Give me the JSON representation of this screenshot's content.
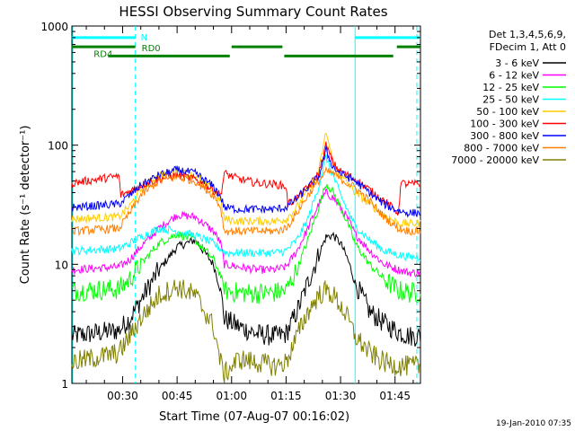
{
  "chart_data": {
    "type": "line",
    "title": "HESSI Observing Summary Count Rates",
    "xlabel": "Start Time (07-Aug-07 00:16:02)",
    "ylabel": "Count Rate (s⁻¹ detector⁻¹)",
    "yscale": "log",
    "ylim": [
      1,
      1000
    ],
    "xlim_minutes": [
      16.03,
      112.0
    ],
    "x_tick_labels": [
      "00:30",
      "00:45",
      "01:00",
      "01:15",
      "01:30",
      "01:45"
    ],
    "x_tick_minutes": [
      30,
      45,
      60,
      75,
      90,
      105
    ],
    "y_tick_labels": [
      "1",
      "10",
      "100",
      "1000"
    ],
    "y_tick_values": [
      1,
      10,
      100,
      1000
    ],
    "legend_header": [
      "Det 1,3,4,5,6,9,",
      "FDecim 1, Att 0"
    ],
    "series": [
      {
        "name": "3 - 6 keV",
        "color": "#000000",
        "x": [
          16,
          29,
          32,
          35,
          40,
          45,
          50,
          55,
          57,
          58,
          62,
          67,
          72,
          75,
          78,
          81,
          84,
          86,
          88,
          90,
          92,
          94,
          98,
          102,
          106,
          109,
          110,
          112
        ],
        "y": [
          2.5,
          2.8,
          3.5,
          5,
          9,
          14,
          16,
          10,
          6,
          3.5,
          3,
          2.6,
          2.5,
          2.6,
          4,
          7,
          12,
          17,
          17.5,
          15,
          11,
          7,
          4,
          3.2,
          2.7,
          2.5,
          2.5,
          2.5
        ]
      },
      {
        "name": "6 - 12 keV",
        "color": "#ff00ff",
        "x": [
          16,
          29,
          32,
          35,
          40,
          45,
          50,
          55,
          57,
          58,
          62,
          67,
          72,
          75,
          78,
          81,
          84,
          86,
          88,
          90,
          92,
          94,
          98,
          102,
          106,
          109,
          110,
          112
        ],
        "y": [
          9,
          9.5,
          11,
          14,
          20,
          26,
          25,
          19,
          15,
          10,
          9.5,
          9,
          9,
          9.5,
          13,
          20,
          32,
          40,
          36,
          30,
          24,
          18,
          13,
          10,
          9,
          8.5,
          8.5,
          8.5
        ]
      },
      {
        "name": "12 - 25 keV",
        "color": "#00ff00",
        "x": [
          16,
          29,
          32,
          35,
          40,
          45,
          50,
          55,
          57,
          58,
          62,
          67,
          72,
          75,
          78,
          81,
          84,
          86,
          88,
          90,
          92,
          94,
          98,
          102,
          106,
          109,
          110,
          112
        ],
        "y": [
          6,
          6.2,
          7.5,
          10,
          15,
          18,
          16,
          11,
          8,
          6,
          5.8,
          5.7,
          5.8,
          6,
          9,
          16,
          30,
          48,
          40,
          30,
          22,
          15,
          10,
          7.5,
          6,
          5.8,
          5.8,
          5.8
        ]
      },
      {
        "name": "25 - 50 keV",
        "color": "#00ffff",
        "x": [
          16,
          29,
          32,
          35,
          40,
          45,
          50,
          55,
          57,
          58,
          62,
          67,
          72,
          75,
          78,
          81,
          84,
          86,
          88,
          90,
          92,
          94,
          98,
          102,
          106,
          109,
          110,
          112
        ],
        "y": [
          13,
          13.5,
          15,
          17,
          20,
          19,
          17.5,
          15,
          13.5,
          12.5,
          12.5,
          12.5,
          12.5,
          13,
          16,
          24,
          45,
          80,
          55,
          38,
          28,
          21,
          16,
          13,
          12,
          11.5,
          11.5,
          11.5
        ]
      },
      {
        "name": "50 - 100 keV",
        "color": "#ffcc00",
        "x": [
          16,
          29,
          32,
          35,
          40,
          45,
          50,
          55,
          57,
          58,
          62,
          67,
          72,
          75,
          78,
          81,
          84,
          86,
          88,
          90,
          92,
          94,
          98,
          102,
          106,
          109,
          110,
          112
        ],
        "y": [
          24,
          25,
          31,
          42,
          56,
          60,
          55,
          42,
          34,
          24,
          23,
          23,
          23,
          24,
          30,
          42,
          60,
          130,
          70,
          55,
          48,
          40,
          32,
          26,
          22,
          22,
          22,
          22
        ]
      },
      {
        "name": "100 - 300 keV",
        "color": "#ff0000",
        "x": [
          16,
          29,
          29.5,
          32,
          35,
          40,
          45,
          50,
          55,
          57,
          58,
          62,
          67,
          72,
          75,
          75.5,
          78,
          81,
          84,
          86,
          88,
          90,
          94,
          98,
          102,
          106,
          106.5,
          109,
          112
        ],
        "y": [
          48,
          55,
          38,
          41,
          46,
          52,
          56,
          52,
          42,
          38,
          58,
          52,
          48,
          47,
          45,
          32,
          36,
          44,
          58,
          100,
          70,
          60,
          52,
          42,
          34,
          27,
          48,
          47,
          47
        ]
      },
      {
        "name": "300 - 800 keV",
        "color": "#0000ff",
        "x": [
          16,
          29,
          32,
          35,
          40,
          45,
          50,
          55,
          57,
          58,
          62,
          67,
          72,
          75,
          78,
          81,
          84,
          86,
          88,
          90,
          94,
          98,
          102,
          106,
          109,
          110,
          112
        ],
        "y": [
          30,
          32,
          38,
          46,
          56,
          62,
          58,
          45,
          37,
          30,
          29,
          29,
          29,
          30,
          36,
          44,
          54,
          90,
          65,
          58,
          50,
          40,
          32,
          28,
          27,
          27,
          27
        ]
      },
      {
        "name": "800 - 7000 keV",
        "color": "#ff8000",
        "x": [
          16,
          29,
          32,
          35,
          40,
          45,
          50,
          55,
          57,
          58,
          62,
          67,
          72,
          75,
          78,
          81,
          84,
          86,
          88,
          90,
          94,
          98,
          102,
          106,
          109,
          110,
          112
        ],
        "y": [
          19,
          20,
          27,
          38,
          50,
          54,
          50,
          38,
          30,
          19,
          19,
          19,
          19,
          20,
          27,
          38,
          50,
          60,
          58,
          52,
          44,
          34,
          25,
          20,
          19,
          19,
          19
        ]
      },
      {
        "name": "7000 - 20000 keV",
        "color": "#808000",
        "x": [
          16,
          29,
          32,
          35,
          40,
          45,
          50,
          55,
          57,
          58,
          62,
          67,
          72,
          75,
          78,
          81,
          84,
          86,
          88,
          90,
          92,
          94,
          98,
          102,
          106,
          109,
          110,
          112
        ],
        "y": [
          1.5,
          1.8,
          2.5,
          3.5,
          5.5,
          6.5,
          5.5,
          3,
          1.5,
          1.2,
          1.6,
          1.5,
          1.4,
          1.5,
          2.5,
          4,
          5.5,
          6,
          5.5,
          4.5,
          3.5,
          2.5,
          1.8,
          1.5,
          1.4,
          1.4,
          1.4,
          1.4
        ]
      }
    ],
    "vertical_lines_minutes": [
      33.5,
      94.0,
      111.0
    ],
    "bars": [
      {
        "label": "N",
        "color": "#00ffff",
        "row_value": 800,
        "segments": [
          [
            16,
            33.5
          ],
          [
            94,
            112
          ]
        ]
      },
      {
        "label": "RD0",
        "color": "#008000",
        "row_value": 670,
        "segments": [
          [
            16,
            33.5
          ],
          [
            60,
            74
          ],
          [
            105.5,
            112
          ]
        ]
      },
      {
        "label": "RD4",
        "color": "#008000",
        "row_value": 560,
        "segments": [
          [
            26,
            59.5
          ],
          [
            74.5,
            104.5
          ]
        ]
      }
    ],
    "timestamp": "19-Jan-2010 07:35"
  }
}
